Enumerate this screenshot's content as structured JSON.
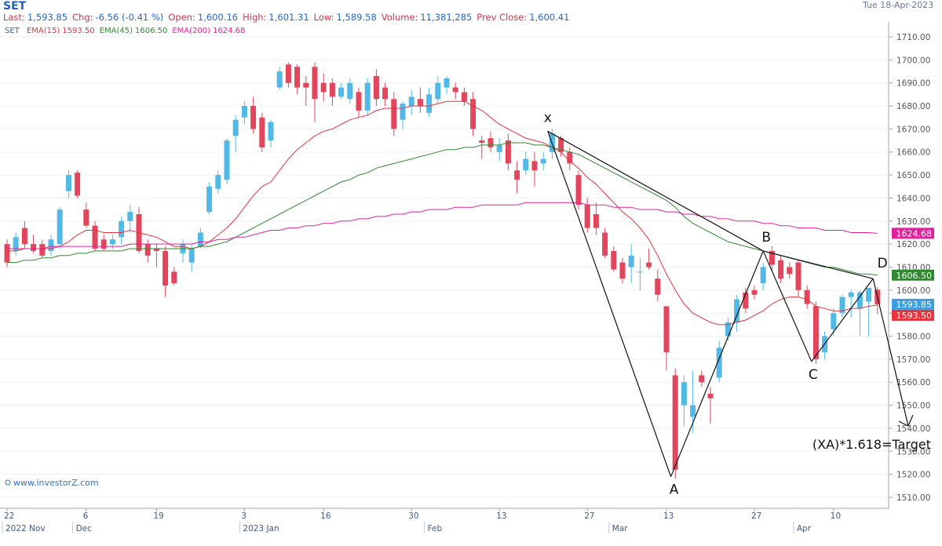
{
  "chart_data": {
    "type": "candlestick",
    "title": "SET",
    "date": "Tue 18-Apr-2023",
    "quote": [
      {
        "label": "Last:",
        "value": "1,593.85"
      },
      {
        "label": "Chg:",
        "value": "-6.56 (-0.41 %)"
      },
      {
        "label": "Open:",
        "value": "1,600.16"
      },
      {
        "label": "High:",
        "value": "1,601.31"
      },
      {
        "label": "Low:",
        "value": "1,589.58"
      },
      {
        "label": "Volume:",
        "value": "11,381,285"
      },
      {
        "label": "Prev Close:",
        "value": "1,600.41"
      }
    ],
    "categories": [
      "22",
      null,
      null,
      null,
      null,
      null,
      null,
      null,
      null,
      "6",
      null,
      null,
      null,
      null,
      null,
      null,
      null,
      "19",
      null,
      null,
      null,
      null,
      null,
      null,
      null,
      null,
      null,
      "3",
      null,
      null,
      null,
      null,
      null,
      null,
      null,
      null,
      "16",
      null,
      null,
      null,
      null,
      null,
      null,
      null,
      null,
      null,
      "30",
      null,
      null,
      null,
      null,
      null,
      null,
      null,
      null,
      null,
      "13",
      null,
      null,
      null,
      null,
      null,
      null,
      null,
      null,
      null,
      "27",
      null,
      null,
      null,
      null,
      null,
      null,
      null,
      null,
      "13",
      null,
      null,
      null,
      null,
      null,
      null,
      null,
      null,
      null,
      "27",
      null,
      null,
      null,
      null,
      null,
      null,
      null,
      null,
      "10",
      null,
      null,
      null,
      null,
      null
    ],
    "month_labels": [
      "2022 Nov",
      null,
      null,
      null,
      null,
      null,
      null,
      null,
      "Dec",
      null,
      null,
      null,
      null,
      null,
      null,
      null,
      null,
      null,
      null,
      null,
      null,
      null,
      null,
      null,
      null,
      null,
      null,
      "2023 Jan",
      null,
      null,
      null,
      null,
      null,
      null,
      null,
      null,
      null,
      null,
      null,
      null,
      null,
      null,
      null,
      null,
      null,
      null,
      null,
      null,
      "Feb",
      null,
      null,
      null,
      null,
      null,
      null,
      null,
      null,
      null,
      null,
      null,
      null,
      null,
      null,
      null,
      null,
      null,
      null,
      null,
      null,
      "Mar",
      null,
      null,
      null,
      null,
      null,
      null,
      null,
      null,
      null,
      null,
      null,
      null,
      null,
      null,
      null,
      null,
      null,
      null,
      null,
      null,
      "Apr",
      null,
      null,
      null,
      null,
      null,
      null,
      null,
      null,
      null
    ],
    "open": [
      1620,
      1617,
      1627,
      1620,
      1620,
      1617,
      1620,
      1643,
      1651,
      1635,
      1628,
      1622,
      1620,
      1623,
      1630,
      1633,
      1620,
      1618,
      1617,
      1608,
      1616,
      1612,
      1619,
      1634,
      1644,
      1648,
      1667,
      1675,
      1680,
      1675,
      1665,
      1688,
      1698,
      1697,
      1690,
      1697,
      1690,
      1690,
      1684,
      1683,
      1686,
      1678,
      1693,
      1688,
      1683,
      1674,
      1680,
      1683,
      1677,
      1683,
      1688,
      1688,
      1686,
      1683,
      1665,
      1666,
      1660,
      1665,
      1652,
      1652,
      1656,
      1655,
      1660,
      1666,
      1660,
      1650,
      1637,
      1633,
      1625,
      1617,
      1612,
      1610,
      1608,
      1612,
      1605,
      1593,
      1563,
      1550,
      1545,
      1563,
      1555,
      1562,
      1580,
      1586,
      1599,
      1600,
      1603,
      1617,
      1613,
      1610,
      1612,
      1600,
      1593,
      1573,
      1583,
      1590,
      1597,
      1592,
      1595,
      1600.16
    ],
    "high": [
      1622,
      1625,
      1630,
      1624,
      1622,
      1624,
      1636,
      1652,
      1652,
      1638,
      1630,
      1624,
      1624,
      1632,
      1637,
      1636,
      1622,
      1620,
      1619,
      1610,
      1622,
      1620,
      1627,
      1647,
      1652,
      1666,
      1676,
      1682,
      1684,
      1677,
      1674,
      1697,
      1699,
      1698,
      1693,
      1699,
      1694,
      1692,
      1690,
      1692,
      1688,
      1692,
      1696,
      1690,
      1686,
      1682,
      1687,
      1688,
      1688,
      1693,
      1693,
      1690,
      1688,
      1686,
      1667,
      1669,
      1666,
      1668,
      1656,
      1660,
      1660,
      1660,
      1670,
      1667,
      1662,
      1652,
      1640,
      1638,
      1627,
      1619,
      1614,
      1620,
      1614,
      1618,
      1609,
      1593,
      1566,
      1563,
      1565,
      1565,
      1558,
      1578,
      1588,
      1598,
      1601,
      1602,
      1612,
      1619,
      1615,
      1612,
      1613,
      1602,
      1595,
      1582,
      1592,
      1598,
      1600,
      1600,
      1601,
      1601.31
    ],
    "low": [
      1610,
      1615,
      1618,
      1616,
      1614,
      1615,
      1618,
      1640,
      1640,
      1627,
      1617,
      1617,
      1618,
      1620,
      1625,
      1616,
      1612,
      1610,
      1597,
      1602,
      1612,
      1608,
      1618,
      1633,
      1642,
      1646,
      1660,
      1672,
      1668,
      1660,
      1662,
      1687,
      1688,
      1685,
      1680,
      1673,
      1682,
      1680,
      1683,
      1681,
      1675,
      1676,
      1680,
      1680,
      1667,
      1670,
      1676,
      1677,
      1675,
      1681,
      1685,
      1683,
      1680,
      1667,
      1657,
      1660,
      1656,
      1652,
      1642,
      1650,
      1645,
      1652,
      1657,
      1658,
      1652,
      1635,
      1625,
      1624,
      1614,
      1608,
      1603,
      1603,
      1600,
      1609,
      1595,
      1565,
      1518,
      1541,
      1538,
      1558,
      1542,
      1560,
      1578,
      1582,
      1590,
      1596,
      1600,
      1608,
      1603,
      1605,
      1597,
      1592,
      1568,
      1570,
      1580,
      1588,
      1588,
      1580,
      1580,
      1589.58
    ],
    "close": [
      1612,
      1623,
      1620,
      1617,
      1615,
      1622,
      1635,
      1650,
      1641,
      1628,
      1618,
      1618,
      1622,
      1630,
      1634,
      1617,
      1615,
      1617,
      1602,
      1603,
      1620,
      1618,
      1625,
      1645,
      1650,
      1665,
      1674,
      1680,
      1670,
      1662,
      1673,
      1695,
      1690,
      1688,
      1688,
      1683,
      1686,
      1684,
      1688,
      1690,
      1678,
      1690,
      1683,
      1683,
      1670,
      1681,
      1684,
      1680,
      1685,
      1690,
      1692,
      1686,
      1682,
      1670,
      1664,
      1662,
      1663,
      1655,
      1648,
      1657,
      1652,
      1657,
      1668,
      1660,
      1655,
      1637,
      1627,
      1627,
      1615,
      1609,
      1605,
      1615,
      1608,
      1610,
      1598,
      1573,
      1522,
      1560,
      1550,
      1560,
      1553,
      1575,
      1586,
      1596,
      1592,
      1598,
      1610,
      1611,
      1605,
      1607,
      1600,
      1594,
      1570,
      1580,
      1590,
      1597,
      1599,
      1599,
      1601,
      1593.85
    ],
    "up_color": "#52b8e6",
    "down_color": "#e2465c",
    "series": [
      {
        "name": "EMA(15)",
        "color": "#e8323c",
        "last_label": "1593.50",
        "values": [
          1617,
          1617,
          1618,
          1618,
          1618,
          1618,
          1619,
          1621,
          1624,
          1626,
          1626,
          1625,
          1625,
          1625,
          1626,
          1625,
          1624,
          1623,
          1621,
          1619,
          1619,
          1618,
          1619,
          1621,
          1624,
          1627,
          1631,
          1636,
          1641,
          1645,
          1647,
          1652,
          1657,
          1661,
          1664,
          1667,
          1669,
          1670,
          1672,
          1674,
          1675,
          1676,
          1678,
          1679,
          1679,
          1679,
          1680,
          1680,
          1680,
          1681,
          1682,
          1682,
          1682,
          1680,
          1678,
          1675,
          1672,
          1670,
          1668,
          1666,
          1665,
          1664,
          1662,
          1660,
          1656,
          1653,
          1649,
          1646,
          1642,
          1638,
          1634,
          1631,
          1627,
          1622,
          1615,
          1607,
          1600,
          1594,
          1590,
          1588,
          1586,
          1585,
          1585,
          1586,
          1587,
          1589,
          1591,
          1594,
          1596,
          1597,
          1597,
          1596,
          1593,
          1592,
          1591,
          1591,
          1592,
          1592,
          1593,
          1593.5
        ]
      },
      {
        "name": "EMA(45)",
        "color": "#2f8a2f",
        "last_label": "1606.50",
        "values": [
          1612,
          1612,
          1613,
          1613,
          1614,
          1614,
          1615,
          1615,
          1616,
          1616,
          1617,
          1617,
          1617,
          1617,
          1618,
          1618,
          1618,
          1618,
          1618,
          1618,
          1618,
          1618,
          1619,
          1619,
          1620,
          1621,
          1623,
          1625,
          1627,
          1629,
          1631,
          1633,
          1635,
          1637,
          1639,
          1641,
          1643,
          1645,
          1647,
          1648,
          1650,
          1651,
          1653,
          1654,
          1655,
          1656,
          1657,
          1658,
          1659,
          1660,
          1661,
          1661,
          1662,
          1662,
          1663,
          1663,
          1663,
          1664,
          1664,
          1664,
          1663,
          1663,
          1662,
          1661,
          1660,
          1659,
          1657,
          1655,
          1653,
          1651,
          1649,
          1647,
          1645,
          1643,
          1641,
          1639,
          1636,
          1632,
          1629,
          1627,
          1625,
          1623,
          1621,
          1620,
          1619,
          1618,
          1617,
          1616,
          1615,
          1614,
          1613,
          1612,
          1611,
          1610,
          1610,
          1609,
          1608,
          1607,
          1607,
          1606.5
        ]
      },
      {
        "name": "EMA(200)",
        "color": "#e0209c",
        "last_label": "1624.68",
        "values": [
          1618,
          1618,
          1618,
          1618,
          1618,
          1619,
          1619,
          1619,
          1619,
          1619,
          1619,
          1619,
          1619,
          1619,
          1620,
          1620,
          1620,
          1620,
          1620,
          1620,
          1620,
          1620,
          1621,
          1621,
          1622,
          1622,
          1623,
          1623,
          1624,
          1625,
          1626,
          1626,
          1627,
          1627,
          1628,
          1628,
          1629,
          1629,
          1630,
          1630,
          1631,
          1631,
          1632,
          1632,
          1633,
          1633,
          1634,
          1634,
          1635,
          1635,
          1635,
          1636,
          1636,
          1636,
          1637,
          1637,
          1637,
          1637,
          1637,
          1638,
          1638,
          1638,
          1638,
          1638,
          1638,
          1638,
          1637,
          1637,
          1637,
          1636,
          1636,
          1636,
          1635,
          1635,
          1635,
          1634,
          1634,
          1633,
          1633,
          1632,
          1632,
          1631,
          1631,
          1630,
          1630,
          1630,
          1629,
          1629,
          1628,
          1628,
          1627,
          1627,
          1627,
          1626,
          1626,
          1626,
          1625,
          1625,
          1625,
          1624.68
        ]
      }
    ],
    "ylim": [
      1506,
      1716
    ],
    "yticks": [
      {
        "value": 1510,
        "label": "1510.00"
      },
      {
        "value": 1520,
        "label": "1520.00"
      },
      {
        "value": 1530,
        "label": "1530.00"
      },
      {
        "value": 1540,
        "label": "1540.00"
      },
      {
        "value": 1550,
        "label": "1550.00"
      },
      {
        "value": 1560,
        "label": "1560.00"
      },
      {
        "value": 1570,
        "label": "1570.00"
      },
      {
        "value": 1580,
        "label": "1580.00"
      },
      {
        "value": 1590,
        "label": "1590.00"
      },
      {
        "value": 1600,
        "label": "1600.00"
      },
      {
        "value": 1610,
        "label": "1610.00"
      },
      {
        "value": 1620,
        "label": "1620.00"
      },
      {
        "value": 1630,
        "label": "1630.00"
      },
      {
        "value": 1640,
        "label": "1640.00"
      },
      {
        "value": 1650,
        "label": "1650.00"
      },
      {
        "value": 1660,
        "label": "1660.00"
      },
      {
        "value": 1670,
        "label": "1670.00"
      },
      {
        "value": 1680,
        "label": "1680.00"
      },
      {
        "value": 1690,
        "label": "1690.00"
      },
      {
        "value": 1700,
        "label": "1700.00"
      },
      {
        "value": 1710,
        "label": "1710.00"
      }
    ],
    "grid": true,
    "pattern": {
      "points": [
        {
          "label": "x",
          "x": 61.5,
          "y": 1669
        },
        {
          "label": "A",
          "x": 75.5,
          "y": 1519
        },
        {
          "label": "B",
          "x": 86,
          "y": 1617
        },
        {
          "label": "C",
          "x": 91.5,
          "y": 1569
        },
        {
          "label": "D",
          "x": 98.5,
          "y": 1605
        }
      ],
      "target": {
        "x": 102.5,
        "y": 1541
      },
      "note": "(XA)*1.618=Target"
    },
    "watermark": "www.investorZ.com"
  }
}
